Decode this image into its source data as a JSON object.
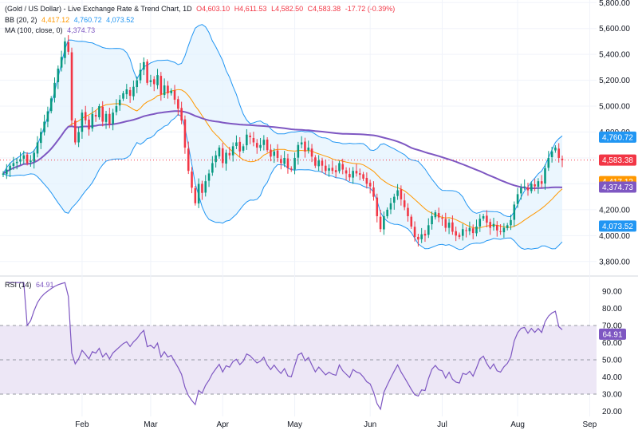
{
  "legend": {
    "symbol": "(Gold / US Dollar) - Live Exchange Rate & Trend Chart, 1D",
    "open": "O4,603.10",
    "high": "H4,611.53",
    "low": "L4,582.50",
    "close": "C4,583.38",
    "change": "-17.72 (-0.39%)",
    "bb_label": "BB (20, 2)",
    "bb_basis": "4,417.12",
    "bb_upper": "4,760.72",
    "bb_lower": "4,073.52",
    "ma_label": "MA (100, close, 0)",
    "ma_value": "4,374.73",
    "rsi_label": "RSI (14)",
    "rsi_value": "64.91"
  },
  "colors": {
    "up": "#089981",
    "down": "#f23645",
    "bb_basis": "#ff9800",
    "bb_band": "#2196f3",
    "bb_fill": "#e3f2fd",
    "ma": "#7e57c2",
    "rsi": "#7e57c2",
    "rsi_fill": "#ede7f6"
  },
  "chart_data": [
    {
      "type": "candlestick",
      "title": "(Gold / US Dollar) - Live Exchange Rate & Trend Chart, 1D",
      "x_tick_labels": [
        "Feb",
        "Mar",
        "Apr",
        "May",
        "Jun",
        "Jul",
        "Aug",
        "Sep"
      ],
      "y_tick_labels": [
        "3,800.00",
        "4,000.00",
        "4,200.00",
        "4,400.00",
        "4,600.00",
        "4,800.00",
        "5,000.00",
        "5,200.00",
        "5,400.00",
        "5,600.00",
        "5,800.00"
      ],
      "ylim": [
        3700,
        5820
      ],
      "grid": true,
      "price_tags": [
        {
          "label": "upper",
          "value": 4760.72,
          "text": "4,760.72"
        },
        {
          "label": "last",
          "value": 4583.38,
          "text": "4,583.38"
        },
        {
          "label": "basis",
          "value": 4417.12,
          "text": "4,417.12"
        },
        {
          "label": "ma",
          "value": 4374.73,
          "text": "4,374.73"
        },
        {
          "label": "lower",
          "value": 4073.52,
          "text": "4,073.52"
        }
      ],
      "closes": [
        4480,
        4510,
        4540,
        4560,
        4570,
        4590,
        4620,
        4560,
        4580,
        4640,
        4720,
        4800,
        4880,
        4960,
        5060,
        5180,
        5290,
        5380,
        5500,
        5420,
        4890,
        4720,
        4800,
        4950,
        4890,
        4820,
        4940,
        4920,
        5000,
        4880,
        4940,
        4860,
        4950,
        5000,
        5050,
        5100,
        5130,
        5080,
        5150,
        5200,
        5280,
        5340,
        5180,
        5200,
        5170,
        5240,
        5090,
        5160,
        5100,
        5120,
        5050,
        4980,
        4890,
        4680,
        4500,
        4370,
        4250,
        4400,
        4330,
        4420,
        4480,
        4560,
        4620,
        4680,
        4560,
        4640,
        4620,
        4690,
        4720,
        4650,
        4690,
        4780,
        4760,
        4720,
        4680,
        4700,
        4740,
        4660,
        4610,
        4650,
        4600,
        4560,
        4600,
        4520,
        4510,
        4600,
        4700,
        4720,
        4650,
        4680,
        4610,
        4540,
        4580,
        4540,
        4500,
        4520,
        4500,
        4490,
        4560,
        4510,
        4480,
        4450,
        4500,
        4480,
        4470,
        4440,
        4400,
        4380,
        4300,
        4150,
        4050,
        4150,
        4200,
        4250,
        4300,
        4350,
        4280,
        4220,
        4150,
        4070,
        3990,
        3970,
        4010,
        4000,
        4080,
        4150,
        4180,
        4140,
        4130,
        4060,
        4100,
        4030,
        4000,
        3990,
        4050,
        4040,
        4060,
        4020,
        4070,
        4130,
        4150,
        4100,
        4060,
        4090,
        4040,
        4030,
        4060,
        4080,
        4120,
        4240,
        4320,
        4370,
        4380,
        4350,
        4400,
        4380,
        4420,
        4400,
        4520,
        4600,
        4650,
        4680,
        4600,
        4583
      ]
    },
    {
      "type": "line",
      "title": "RSI (14)",
      "y_tick_labels": [
        "20.00",
        "30.00",
        "40.00",
        "50.00",
        "60.00",
        "70.00",
        "80.00",
        "90.00"
      ],
      "ylim": [
        17,
        96
      ],
      "band": [
        30,
        70
      ],
      "midline": 50,
      "last_value": 64.91
    }
  ]
}
